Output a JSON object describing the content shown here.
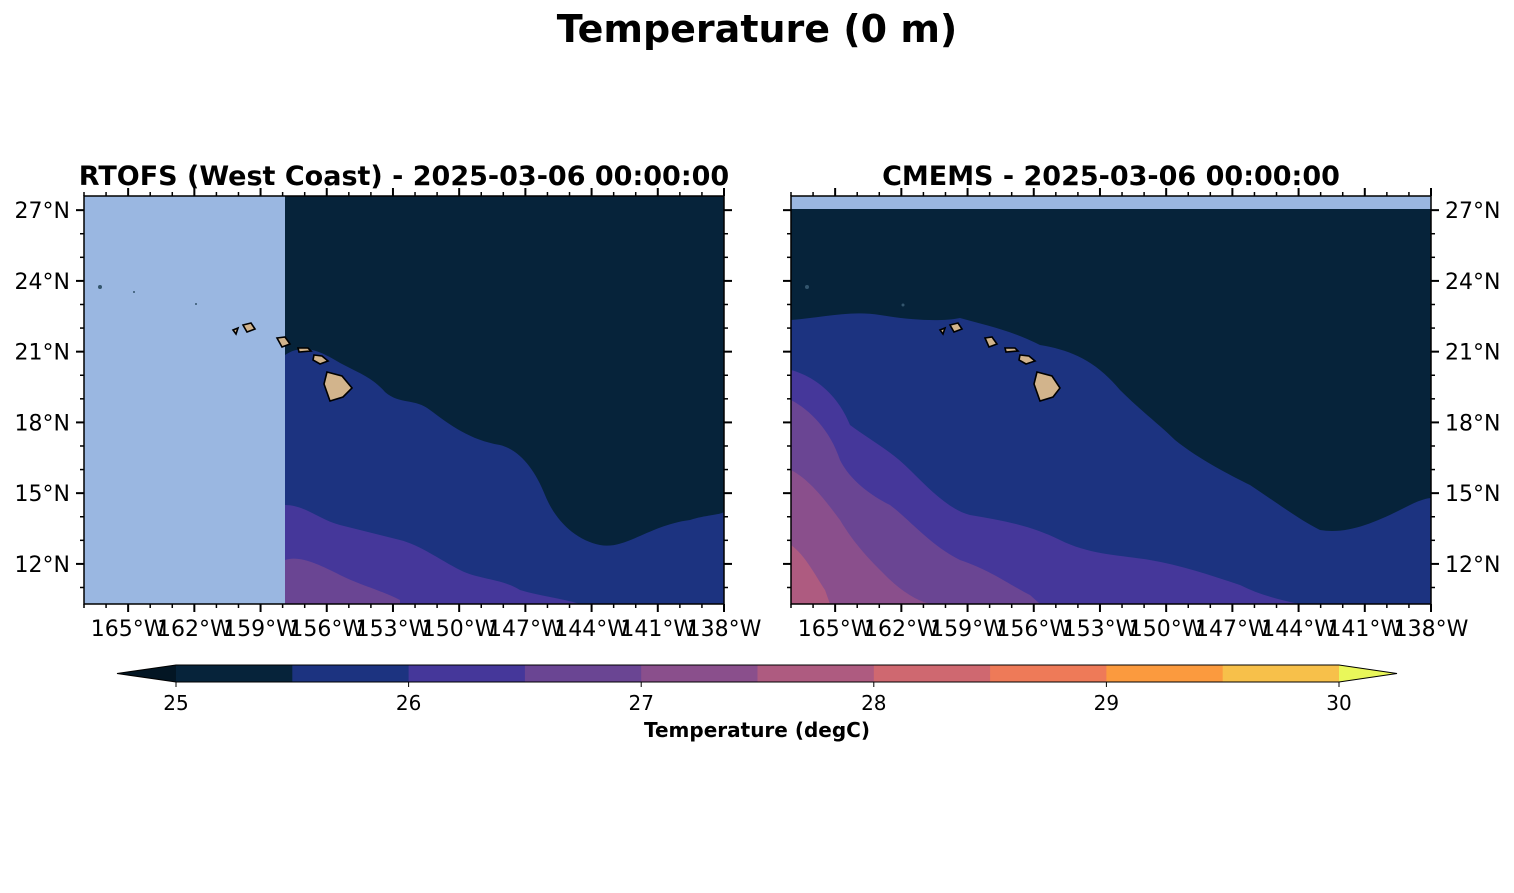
{
  "figure": {
    "title": "Temperature (0 m)"
  },
  "panels": [
    {
      "id": "rtofs",
      "title": "RTOFS (West Coast) - 2025-03-06 00:00:00",
      "lat_labels_side": "left",
      "data_start_lon": -157.5,
      "data_top_lat": 27.6
    },
    {
      "id": "cmems",
      "title": "CMEMS - 2025-03-06 00:00:00",
      "lat_labels_side": "right",
      "data_start_lon": -167,
      "data_top_lat": 27
    }
  ],
  "map_extent": {
    "lon": [
      -167,
      -138
    ],
    "lat": [
      10.3,
      27.6
    ]
  },
  "x_ticks": [
    {
      "value": -165,
      "label": "165°W"
    },
    {
      "value": -162,
      "label": "162°W"
    },
    {
      "value": -159,
      "label": "159°W"
    },
    {
      "value": -156,
      "label": "156°W"
    },
    {
      "value": -153,
      "label": "153°W"
    },
    {
      "value": -150,
      "label": "150°W"
    },
    {
      "value": -147,
      "label": "147°W"
    },
    {
      "value": -144,
      "label": "144°W"
    },
    {
      "value": -141,
      "label": "141°W"
    },
    {
      "value": -138,
      "label": "138°W"
    }
  ],
  "y_ticks": [
    {
      "value": 27,
      "label": "27°N"
    },
    {
      "value": 24,
      "label": "24°N"
    },
    {
      "value": 21,
      "label": "21°N"
    },
    {
      "value": 18,
      "label": "18°N"
    },
    {
      "value": 15,
      "label": "15°N"
    },
    {
      "value": 12,
      "label": "12°N"
    }
  ],
  "colorbar": {
    "label": "Temperature (degC)",
    "min": 25,
    "max": 30,
    "extend": "both",
    "ticks": [
      25,
      26,
      27,
      28,
      29,
      30
    ],
    "tick_labels": [
      "25",
      "26",
      "27",
      "28",
      "29",
      "30"
    ],
    "colors": [
      "#06233a",
      "#1c3380",
      "#45379a",
      "#6a4593",
      "#8a4f8c",
      "#ae5b80",
      "#cf6870",
      "#ee7a58",
      "#fb9a3e",
      "#f7c04a"
    ],
    "under_color": "#031624",
    "over_color": "#e9f75a"
  },
  "colors": {
    "no_data": "#9ab7e1",
    "land": "#d2b48c",
    "coast": "#000000"
  }
}
